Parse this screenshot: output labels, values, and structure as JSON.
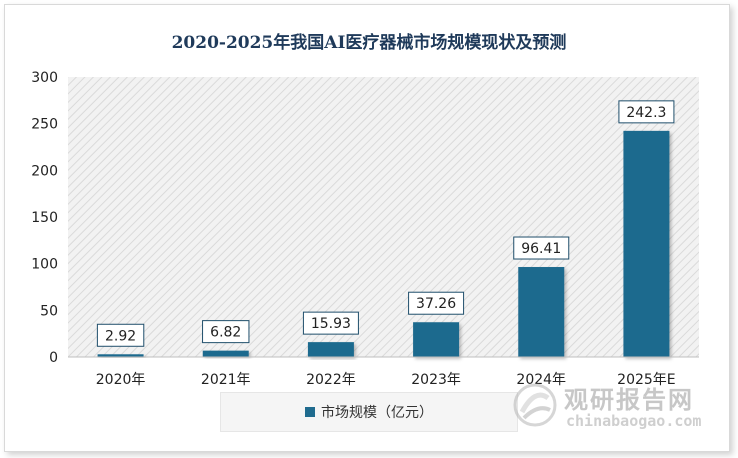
{
  "chart_data": {
    "type": "bar",
    "title": "2020-2025年我国AI医疗器械市场规模现状及预测",
    "categories": [
      "2020年",
      "2021年",
      "2022年",
      "2023年",
      "2024年",
      "2025年E"
    ],
    "series": [
      {
        "name": "市场规模（亿元）",
        "values": [
          2.92,
          6.82,
          15.93,
          37.26,
          96.41,
          242.3
        ]
      }
    ],
    "data_labels": [
      "2.92",
      "6.82",
      "15.93",
      "37.26",
      "96.41",
      "242.3"
    ],
    "ylim": [
      0,
      300
    ],
    "yticks": [
      "0",
      "50",
      "100",
      "150",
      "200",
      "250",
      "300"
    ],
    "grid": false,
    "legend_position": "bottom",
    "bar_color": "#1f6b8e",
    "plot_background": "hatched-light-gray"
  },
  "watermark": {
    "name": "观研报告网",
    "url": "chinabaogao.com",
    "logo_icon": "watermark-logo-icon"
  }
}
